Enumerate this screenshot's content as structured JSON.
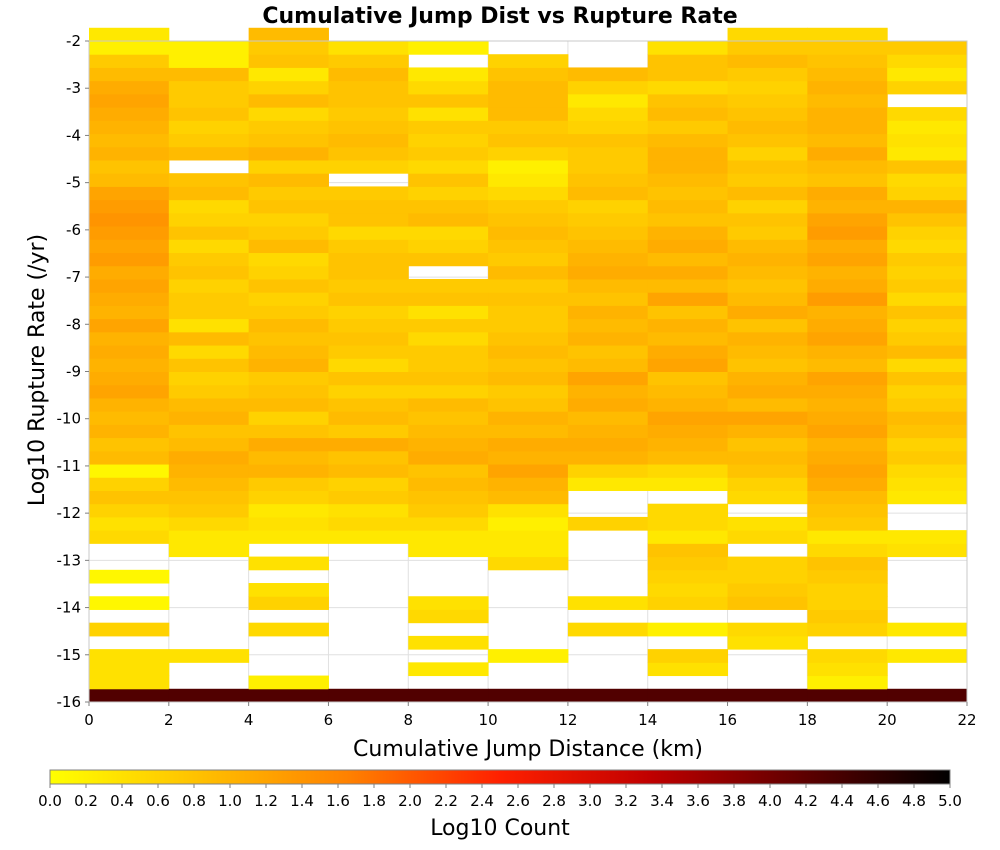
{
  "chart_data": {
    "type": "heatmap",
    "title": "Cumulative Jump Dist vs Rupture Rate",
    "xlabel": "Cumulative Jump Distance (km)",
    "ylabel": "Log10 Rupture Rate (/yr)",
    "colorbar_label": "Log10 Count",
    "xlim": [
      0,
      22
    ],
    "ylim": [
      -16,
      -2
    ],
    "x_ticks": [
      "0",
      "2",
      "4",
      "6",
      "8",
      "10",
      "12",
      "14",
      "16",
      "18",
      "20",
      "22"
    ],
    "y_ticks": [
      "-2",
      "-3",
      "-4",
      "-5",
      "-6",
      "-7",
      "-8",
      "-9",
      "-10",
      "-11",
      "-12",
      "-13",
      "-14",
      "-15",
      "-16"
    ],
    "colorbar_ticks": [
      "0.0",
      "0.2",
      "0.4",
      "0.6",
      "0.8",
      "1.0",
      "1.2",
      "1.4",
      "1.6",
      "1.8",
      "2.0",
      "2.2",
      "2.4",
      "2.6",
      "2.8",
      "3.0",
      "3.2",
      "3.4",
      "3.6",
      "3.8",
      "4.0",
      "4.2",
      "4.4",
      "4.6",
      "4.8",
      "5.0"
    ],
    "colorbar_range": [
      0,
      5
    ],
    "colorscale": [
      "#ffff00",
      "#ffc000",
      "#ff8000",
      "#ff2000",
      "#c00000",
      "#600000",
      "#000000"
    ],
    "x_bin_width": 2,
    "y_bin_height": 0.28,
    "y_bin_start": -16,
    "x_bin_starts": [
      0,
      2,
      4,
      6,
      8,
      10,
      12,
      14,
      16,
      18,
      20
    ],
    "note_values": "values are log10 count per cell; null = empty",
    "columns": [
      [
        4.3,
        0.4,
        0.4,
        0.4,
        null,
        0.6,
        null,
        0.1,
        null,
        0.1,
        null,
        null,
        0.5,
        0.4,
        0.6,
        0.8,
        0.6,
        0.1,
        0.9,
        0.8,
        1.0,
        0.9,
        1.0,
        1.2,
        1.1,
        1.0,
        1.1,
        1.0,
        1.2,
        1.0,
        1.1,
        1.2,
        1.1,
        1.3,
        1.2,
        1.3,
        1.4,
        1.3,
        1.2,
        0.9,
        0.8,
        1.0,
        0.9,
        1.0,
        1.1,
        1.2,
        1.1,
        0.9,
        0.7,
        0.2,
        0.3
      ],
      [
        4.3,
        null,
        null,
        0.4,
        null,
        null,
        null,
        null,
        null,
        null,
        null,
        0.3,
        0.3,
        0.5,
        0.7,
        0.8,
        0.9,
        1.0,
        1.1,
        0.9,
        0.8,
        1.0,
        0.9,
        0.7,
        0.6,
        0.8,
        0.5,
        0.9,
        0.4,
        0.7,
        0.7,
        0.6,
        0.8,
        0.7,
        0.5,
        0.8,
        0.6,
        0.5,
        0.9,
        0.8,
        null,
        0.9,
        0.7,
        0.6,
        0.8,
        0.7,
        0.7,
        0.9,
        0.2,
        0.2,
        null
      ],
      [
        4.3,
        0.2,
        null,
        null,
        null,
        0.5,
        null,
        0.6,
        0.4,
        null,
        0.4,
        null,
        0.3,
        0.4,
        0.3,
        0.6,
        0.7,
        1.0,
        0.9,
        1.1,
        0.8,
        0.6,
        0.9,
        0.8,
        0.7,
        1.0,
        0.9,
        0.8,
        0.9,
        0.7,
        0.6,
        0.8,
        0.6,
        0.5,
        0.9,
        0.7,
        0.6,
        0.8,
        0.7,
        0.9,
        0.6,
        1.0,
        0.8,
        0.7,
        0.5,
        0.9,
        0.6,
        0.3,
        0.8,
        0.7,
        0.9
      ],
      [
        4.3,
        null,
        null,
        null,
        null,
        null,
        null,
        null,
        null,
        null,
        null,
        null,
        0.3,
        0.5,
        0.4,
        0.7,
        0.6,
        0.9,
        0.8,
        1.1,
        0.7,
        0.9,
        0.8,
        0.6,
        0.8,
        0.5,
        0.7,
        0.8,
        0.7,
        0.6,
        0.8,
        0.7,
        0.8,
        0.8,
        0.7,
        0.5,
        0.8,
        0.8,
        0.7,
        null,
        0.6,
        0.8,
        0.9,
        0.8,
        0.7,
        0.8,
        0.8,
        0.9,
        0.7,
        0.4,
        null
      ],
      [
        4.3,
        null,
        0.3,
        null,
        0.4,
        null,
        0.5,
        0.4,
        null,
        null,
        null,
        0.3,
        0.3,
        0.5,
        0.7,
        0.8,
        0.9,
        0.8,
        1.1,
        1.0,
        0.9,
        0.8,
        0.9,
        0.6,
        0.8,
        0.7,
        0.7,
        0.5,
        0.7,
        0.4,
        0.8,
        0.7,
        null,
        0.8,
        0.6,
        0.5,
        0.9,
        0.8,
        0.6,
        0.8,
        0.5,
        0.7,
        0.6,
        0.7,
        0.4,
        0.8,
        0.5,
        0.3,
        null,
        0.2,
        null
      ],
      [
        4.3,
        null,
        null,
        0.2,
        null,
        null,
        null,
        null,
        null,
        null,
        0.5,
        0.3,
        0.3,
        0.2,
        0.4,
        0.9,
        1.0,
        1.2,
        1.0,
        1.1,
        0.9,
        1.0,
        0.8,
        0.7,
        0.9,
        0.8,
        0.9,
        0.8,
        0.7,
        0.7,
        0.8,
        0.7,
        0.9,
        0.7,
        0.8,
        0.9,
        0.8,
        0.7,
        0.5,
        0.3,
        0.2,
        0.6,
        0.8,
        0.7,
        0.9,
        0.9,
        0.9,
        0.8,
        0.6,
        null,
        null
      ],
      [
        4.3,
        null,
        null,
        null,
        null,
        0.5,
        null,
        0.4,
        null,
        null,
        null,
        null,
        null,
        0.6,
        null,
        null,
        0.3,
        0.6,
        1.0,
        1.1,
        1.0,
        0.9,
        1.1,
        1.0,
        1.2,
        0.9,
        0.8,
        1.0,
        0.9,
        1.0,
        0.8,
        0.9,
        1.1,
        1.0,
        0.9,
        0.8,
        0.7,
        0.6,
        0.9,
        0.8,
        0.7,
        0.7,
        0.8,
        0.6,
        0.5,
        0.3,
        0.6,
        0.9,
        null,
        null,
        null
      ],
      [
        4.3,
        null,
        0.4,
        0.6,
        null,
        0.2,
        null,
        0.6,
        0.5,
        0.6,
        0.7,
        0.8,
        0.3,
        0.5,
        0.5,
        null,
        0.3,
        0.5,
        0.9,
        1.0,
        1.1,
        1.2,
        1.0,
        0.9,
        0.8,
        1.2,
        1.1,
        0.9,
        1.0,
        0.8,
        1.2,
        0.9,
        1.1,
        0.9,
        1.1,
        1.0,
        0.8,
        0.9,
        0.8,
        0.9,
        1.0,
        1.0,
        0.9,
        0.7,
        0.9,
        0.8,
        0.5,
        0.8,
        0.8,
        0.4,
        null
      ],
      [
        4.3,
        null,
        null,
        null,
        0.4,
        0.5,
        null,
        0.8,
        0.7,
        0.6,
        0.6,
        null,
        0.5,
        0.4,
        null,
        0.5,
        0.6,
        0.8,
        0.9,
        0.8,
        1.0,
        1.2,
        0.9,
        1.1,
        1.0,
        0.8,
        0.9,
        1.0,
        0.8,
        1.1,
        0.9,
        0.8,
        0.9,
        1.0,
        0.9,
        0.7,
        0.8,
        0.6,
        0.9,
        0.7,
        0.8,
        0.6,
        0.8,
        0.9,
        0.8,
        0.7,
        0.6,
        0.7,
        0.9,
        0.7,
        0.5
      ],
      [
        4.3,
        0.2,
        0.4,
        0.5,
        null,
        0.6,
        0.7,
        0.6,
        0.6,
        0.7,
        0.8,
        0.5,
        0.3,
        0.7,
        0.8,
        0.9,
        1.1,
        1.2,
        1.1,
        1.0,
        1.2,
        1.1,
        1.0,
        1.1,
        1.2,
        0.9,
        1.0,
        1.2,
        1.1,
        1.0,
        1.3,
        1.1,
        1.0,
        1.2,
        1.1,
        1.3,
        1.2,
        1.0,
        1.1,
        0.8,
        0.9,
        1.1,
        0.9,
        1.0,
        1.0,
        0.9,
        1.0,
        0.9,
        0.8,
        0.7,
        0.5
      ],
      [
        4.3,
        null,
        null,
        0.3,
        null,
        0.3,
        null,
        null,
        null,
        null,
        null,
        0.4,
        0.3,
        null,
        null,
        0.3,
        0.4,
        0.5,
        0.7,
        0.6,
        0.8,
        0.9,
        0.7,
        0.6,
        0.8,
        0.5,
        0.9,
        0.7,
        0.6,
        0.8,
        0.5,
        0.7,
        0.6,
        0.7,
        0.5,
        0.6,
        0.8,
        1.0,
        0.6,
        0.5,
        0.8,
        0.3,
        0.4,
        0.3,
        0.5,
        null,
        0.6,
        0.3,
        0.5,
        0.7,
        null
      ]
    ]
  }
}
